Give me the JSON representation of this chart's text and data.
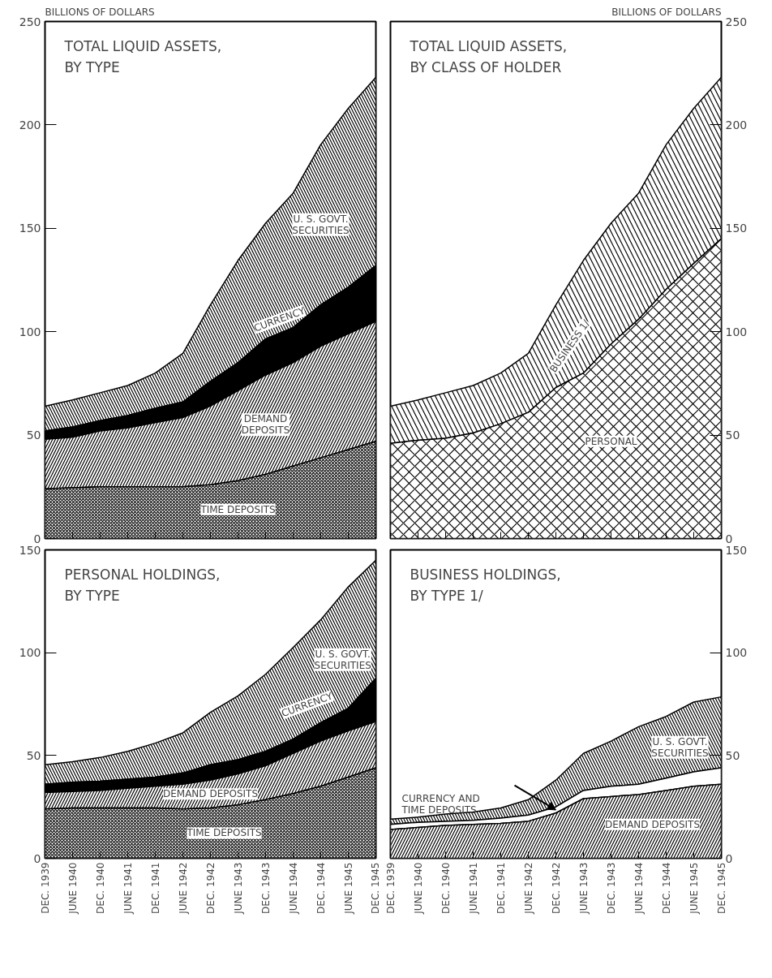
{
  "chart_data": [
    {
      "type": "area",
      "stacked": true,
      "title": "TOTAL LIQUID ASSETS, BY TYPE",
      "ylabel": "BILLIONS OF DOLLARS",
      "tick_labels": "y",
      "categories": [
        "DEC. 1939",
        "JUNE 1940",
        "DEC. 1940",
        "JUNE 1941",
        "DEC. 1941",
        "JUNE 1942",
        "DEC. 1942",
        "JUNE 1943",
        "DEC. 1943",
        "JUNE 1944",
        "DEC. 1944",
        "JUNE 1945",
        "DEC. 1945"
      ],
      "ylim": [
        0,
        250
      ],
      "yticks": [
        0,
        50,
        100,
        150,
        200,
        250
      ],
      "series": [
        {
          "name": "TIME DEPOSITS",
          "color": "#ffffff",
          "values": [
            24,
            24.5,
            25,
            25,
            25,
            25,
            26,
            28,
            31,
            35,
            39,
            43,
            47
          ]
        },
        {
          "name": "DEMAND DEPOSITS",
          "color": "#ffffff",
          "values": [
            24,
            24.5,
            27,
            28.5,
            31,
            33.5,
            38,
            43.5,
            48,
            50,
            54,
            56,
            58
          ]
        },
        {
          "name": "CURRENCY",
          "color": "#000000",
          "values": [
            4,
            5,
            5,
            6,
            7,
            7.5,
            12,
            13.5,
            17.5,
            17,
            20,
            22.5,
            27
          ]
        },
        {
          "name": "U. S. GOVT. SECURITIES",
          "color": "#ffffff",
          "values": [
            12,
            13,
            13.5,
            14.5,
            17,
            23.5,
            37,
            49.5,
            56,
            65,
            77.5,
            86.5,
            91
          ]
        }
      ]
    },
    {
      "type": "area",
      "stacked": true,
      "title": "TOTAL LIQUID ASSETS, BY CLASS OF HOLDER",
      "ylabel": "BILLIONS OF DOLLARS",
      "tick_labels": "y",
      "categories": [
        "DEC. 1939",
        "JUNE 1940",
        "DEC. 1940",
        "JUNE 1941",
        "DEC. 1941",
        "JUNE 1942",
        "DEC. 1942",
        "JUNE 1943",
        "DEC. 1943",
        "JUNE 1944",
        "DEC. 1944",
        "JUNE 1945",
        "DEC. 1945"
      ],
      "ylim": [
        0,
        250
      ],
      "yticks": [
        0,
        50,
        100,
        150,
        200,
        250
      ],
      "series": [
        {
          "name": "PERSONAL",
          "color": "#ffffff",
          "values": [
            46,
            47.5,
            48.5,
            51,
            55.5,
            61,
            73,
            80,
            94,
            106,
            120.5,
            133,
            145
          ]
        },
        {
          "name": "BUSINESS 1/",
          "color": "#ffffff",
          "values": [
            18,
            19.5,
            22,
            23,
            24.5,
            28.5,
            40,
            54.5,
            58.5,
            61,
            70,
            75,
            78
          ]
        }
      ]
    },
    {
      "type": "area",
      "stacked": true,
      "title": "PERSONAL HOLDINGS, BY TYPE",
      "categories": [
        "DEC. 1939",
        "JUNE 1940",
        "DEC. 1940",
        "JUNE 1941",
        "DEC. 1941",
        "JUNE 1942",
        "DEC. 1942",
        "JUNE 1943",
        "DEC. 1943",
        "JUNE 1944",
        "DEC. 1944",
        "JUNE 1945",
        "DEC. 1945"
      ],
      "ylim": [
        0,
        150
      ],
      "yticks": [
        0,
        50,
        100,
        150
      ],
      "series": [
        {
          "name": "TIME DEPOSITS",
          "color": "#ffffff",
          "values": [
            24,
            24.5,
            24.5,
            24.5,
            24.5,
            24,
            24.5,
            26,
            28.5,
            31.5,
            35,
            39.5,
            44
          ]
        },
        {
          "name": "DEMAND DEPOSITS",
          "color": "#ffffff",
          "values": [
            8,
            8,
            8.5,
            9.5,
            10.5,
            12,
            13.5,
            15,
            16.5,
            19.5,
            22,
            22.5,
            22.5
          ]
        },
        {
          "name": "CURRENCY",
          "color": "#000000",
          "values": [
            4,
            4.5,
            4.5,
            4.5,
            4.5,
            5.5,
            7.5,
            7,
            7,
            7,
            9,
            11,
            21
          ]
        },
        {
          "name": "U. S. GOVT. SECURITIES",
          "color": "#ffffff",
          "values": [
            9.5,
            10,
            11.5,
            13.5,
            16.5,
            19.5,
            25.5,
            31,
            37.5,
            44.5,
            50,
            59,
            57.5
          ]
        }
      ]
    },
    {
      "type": "area",
      "stacked": true,
      "title": "BUSINESS HOLDINGS, BY TYPE 1/",
      "categories": [
        "DEC. 1939",
        "JUNE 1940",
        "DEC. 1940",
        "JUNE 1941",
        "DEC. 1941",
        "JUNE 1942",
        "DEC. 1942",
        "JUNE 1943",
        "DEC. 1943",
        "JUNE 1944",
        "DEC. 1944",
        "JUNE 1945",
        "DEC. 1945"
      ],
      "ylim": [
        0,
        150
      ],
      "yticks": [
        0,
        50,
        100,
        150
      ],
      "series": [
        {
          "name": "DEMAND DEPOSITS",
          "color": "#ffffff",
          "values": [
            14,
            15,
            16,
            16.5,
            17,
            18,
            22,
            29,
            30,
            31,
            33,
            35,
            36
          ]
        },
        {
          "name": "CURRENCY AND TIME DEPOSITS",
          "color": "#ffffff",
          "values": [
            2.5,
            2.5,
            2,
            2,
            2.5,
            3,
            3,
            4,
            5,
            5,
            6,
            7,
            8
          ]
        },
        {
          "name": "U. S. GOVT. SECURITIES",
          "color": "#ffffff",
          "values": [
            2.5,
            2.5,
            3.5,
            4,
            5,
            7.5,
            13,
            18,
            22,
            28,
            30,
            34,
            34.5
          ]
        }
      ]
    }
  ]
}
